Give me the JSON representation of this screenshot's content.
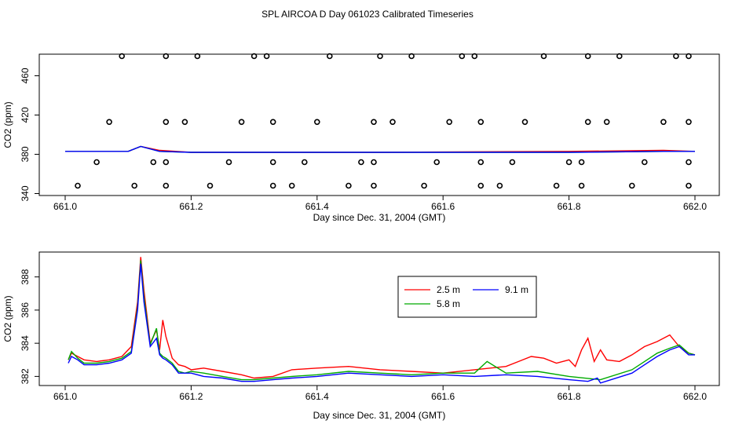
{
  "figure": {
    "title": "SPL AIRCOA D  Day 061023  Calibrated Timeseries"
  },
  "chart_data": [
    {
      "type": "scatter+line",
      "xlabel": "Day since Dec. 31, 2004 (GMT)",
      "ylabel": "CO2 (ppm)",
      "xlim": [
        661.0,
        662.0
      ],
      "ylim": [
        338,
        482
      ],
      "xticks": [
        661.0,
        661.2,
        661.4,
        661.6,
        661.8,
        662.0
      ],
      "xtick_labels": [
        "661.0",
        "661.2",
        "661.4",
        "661.6",
        "661.8",
        "662.0"
      ],
      "yticks": [
        340,
        380,
        420,
        460
      ],
      "ytick_labels": [
        "340",
        "380",
        "420",
        "460"
      ],
      "calibration_points": {
        "name": "calibration",
        "marker": "open-circle",
        "color": "#000000",
        "x": [
          661.09,
          661.16,
          661.21,
          661.3,
          661.32,
          661.42,
          661.5,
          661.55,
          661.63,
          661.65,
          661.76,
          661.83,
          661.88,
          661.97,
          661.99,
          661.07,
          661.16,
          661.19,
          661.28,
          661.33,
          661.4,
          661.49,
          661.52,
          661.61,
          661.66,
          661.73,
          661.83,
          661.86,
          661.95,
          661.99,
          661.05,
          661.14,
          661.16,
          661.26,
          661.33,
          661.38,
          661.47,
          661.49,
          661.59,
          661.66,
          661.71,
          661.8,
          661.82,
          661.92,
          661.99,
          661.02,
          661.11,
          661.16,
          661.23,
          661.33,
          661.36,
          661.45,
          661.49,
          661.57,
          661.66,
          661.69,
          661.78,
          661.82,
          661.9,
          661.99
        ],
        "y": [
          480,
          480,
          480,
          480,
          480,
          480,
          480,
          480,
          480,
          480,
          480,
          480,
          480,
          480,
          480,
          413,
          413,
          413,
          413,
          413,
          413,
          413,
          413,
          413,
          413,
          413,
          413,
          413,
          413,
          413,
          372,
          372,
          372,
          372,
          372,
          372,
          372,
          372,
          372,
          372,
          372,
          372,
          372,
          372,
          372,
          348,
          348,
          348,
          348,
          348,
          348,
          348,
          348,
          348,
          348,
          348,
          348,
          348,
          348,
          348
        ]
      },
      "series": [
        {
          "name": "2.5 m",
          "color": "#ff0000",
          "x": [
            661.0,
            661.1,
            661.12,
            661.15,
            661.2,
            661.5,
            661.8,
            661.95,
            662.0
          ],
          "values": [
            383,
            383,
            388,
            384,
            382,
            382,
            383,
            384,
            383
          ]
        },
        {
          "name": "5.8 m",
          "color": "#00aa00",
          "x": [
            661.0,
            661.1,
            661.12,
            661.15,
            661.2,
            661.5,
            661.8,
            661.95,
            662.0
          ],
          "values": [
            383,
            383,
            388,
            383,
            382,
            382,
            382,
            383,
            383
          ]
        },
        {
          "name": "9.1 m",
          "color": "#0000ff",
          "x": [
            661.0,
            661.1,
            661.12,
            661.15,
            661.2,
            661.5,
            661.8,
            661.95,
            662.0
          ],
          "values": [
            383,
            383,
            388,
            383,
            382,
            382,
            382,
            383,
            383
          ]
        }
      ]
    },
    {
      "type": "line",
      "xlabel": "Day since Dec. 31, 2004 (GMT)",
      "ylabel": "CO2 (ppm)",
      "xlim": [
        661.0,
        662.0
      ],
      "ylim": [
        381.45,
        389.5
      ],
      "xticks": [
        661.0,
        661.2,
        661.4,
        661.6,
        661.8,
        662.0
      ],
      "xtick_labels": [
        "661.0",
        "661.2",
        "661.4",
        "661.6",
        "661.8",
        "662.0"
      ],
      "yticks": [
        382,
        384,
        386,
        388
      ],
      "ytick_labels": [
        "382",
        "384",
        "386",
        "388"
      ],
      "legend": {
        "position": "top-right",
        "entries": [
          "2.5 m",
          "5.8 m",
          "9.1 m"
        ]
      },
      "series": [
        {
          "name": "2.5 m",
          "color": "#ff0000",
          "x": [
            661.005,
            661.01,
            661.02,
            661.03,
            661.05,
            661.07,
            661.09,
            661.105,
            661.115,
            661.12,
            661.125,
            661.135,
            661.145,
            661.15,
            661.155,
            661.16,
            661.17,
            661.18,
            661.19,
            661.2,
            661.22,
            661.25,
            661.28,
            661.3,
            661.33,
            661.36,
            661.4,
            661.45,
            661.5,
            661.55,
            661.6,
            661.65,
            661.7,
            661.72,
            661.74,
            661.76,
            661.78,
            661.8,
            661.81,
            661.82,
            661.83,
            661.84,
            661.85,
            661.86,
            661.88,
            661.9,
            661.92,
            661.94,
            661.96,
            661.975,
            661.99,
            662.0
          ],
          "values": [
            383.0,
            383.4,
            383.2,
            383.0,
            382.9,
            383.0,
            383.2,
            383.8,
            386.5,
            389.2,
            387.2,
            384.0,
            384.8,
            383.6,
            385.4,
            384.4,
            383.1,
            382.7,
            382.6,
            382.4,
            382.5,
            382.3,
            382.1,
            381.9,
            382.0,
            382.4,
            382.5,
            382.6,
            382.4,
            382.3,
            382.2,
            382.4,
            382.6,
            382.9,
            383.2,
            383.1,
            382.8,
            383.0,
            382.6,
            383.6,
            384.3,
            382.9,
            383.6,
            383.0,
            382.9,
            383.3,
            383.8,
            384.1,
            384.5,
            383.8,
            383.4,
            383.3
          ]
        },
        {
          "name": "5.8 m",
          "color": "#00aa00",
          "x": [
            661.005,
            661.01,
            661.02,
            661.03,
            661.05,
            661.07,
            661.09,
            661.105,
            661.115,
            661.12,
            661.125,
            661.135,
            661.145,
            661.15,
            661.155,
            661.16,
            661.17,
            661.18,
            661.19,
            661.2,
            661.22,
            661.25,
            661.28,
            661.3,
            661.33,
            661.36,
            661.4,
            661.45,
            661.5,
            661.55,
            661.6,
            661.65,
            661.67,
            661.7,
            661.75,
            661.8,
            661.85,
            661.9,
            661.92,
            661.94,
            661.96,
            661.975,
            661.99,
            662.0
          ],
          "values": [
            383.0,
            383.5,
            383.1,
            382.8,
            382.8,
            382.9,
            383.1,
            383.5,
            386.2,
            389.0,
            386.8,
            383.9,
            384.9,
            383.4,
            383.2,
            383.1,
            382.8,
            382.3,
            382.2,
            382.3,
            382.2,
            382.0,
            381.8,
            381.8,
            381.9,
            382.0,
            382.1,
            382.3,
            382.2,
            382.1,
            382.2,
            382.2,
            382.9,
            382.2,
            382.3,
            382.0,
            381.8,
            382.4,
            382.9,
            383.4,
            383.7,
            383.9,
            383.4,
            383.3
          ]
        },
        {
          "name": "9.1 m",
          "color": "#0000ff",
          "x": [
            661.005,
            661.01,
            661.02,
            661.03,
            661.05,
            661.07,
            661.09,
            661.105,
            661.115,
            661.12,
            661.125,
            661.135,
            661.145,
            661.15,
            661.155,
            661.16,
            661.17,
            661.18,
            661.19,
            661.2,
            661.22,
            661.25,
            661.28,
            661.3,
            661.33,
            661.36,
            661.4,
            661.45,
            661.5,
            661.55,
            661.6,
            661.65,
            661.7,
            661.75,
            661.8,
            661.83,
            661.845,
            661.85,
            661.9,
            661.92,
            661.94,
            661.96,
            661.975,
            661.99,
            662.0
          ],
          "values": [
            382.8,
            383.2,
            383.0,
            382.7,
            382.7,
            382.8,
            383.0,
            383.4,
            386.0,
            388.8,
            386.5,
            383.8,
            384.3,
            383.3,
            383.1,
            383.0,
            382.7,
            382.2,
            382.2,
            382.2,
            382.0,
            381.9,
            381.7,
            381.7,
            381.8,
            381.9,
            382.0,
            382.2,
            382.1,
            382.0,
            382.1,
            382.0,
            382.1,
            382.0,
            381.8,
            381.7,
            381.9,
            381.6,
            382.2,
            382.7,
            383.2,
            383.6,
            383.8,
            383.3,
            383.3
          ]
        }
      ]
    }
  ]
}
